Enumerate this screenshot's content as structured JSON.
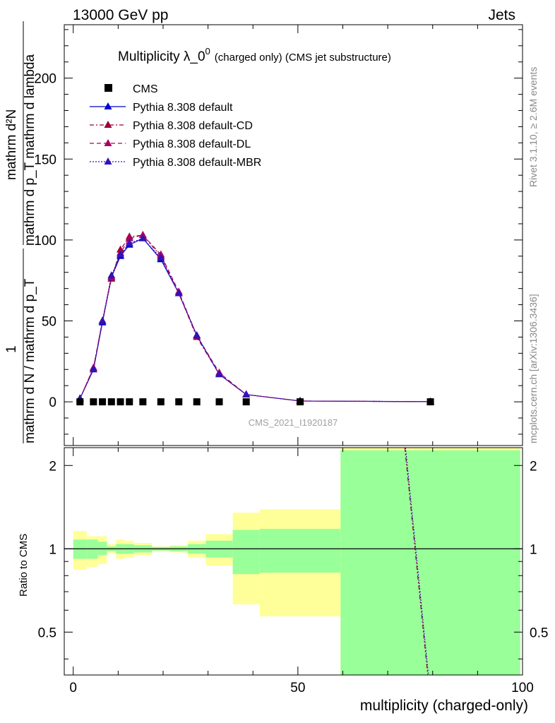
{
  "header": {
    "left": "13000 GeV pp",
    "right": "Jets"
  },
  "title": {
    "main": "Multiplicity λ_0",
    "sup": "0",
    "suffix": "(charged only) (CMS jet substructure)"
  },
  "watermark": "CMS_2021_I1920187",
  "side_labels": {
    "rivet": "Rivet 3.1.10, ≥ 2.6M events",
    "mcplots": "mcplots.cern.ch [arXiv:1306.3436]"
  },
  "ylabel_top": {
    "numerator": "mathrm d²N",
    "denominator": "mathrm d p_T mathrm d lambda",
    "prefix_num": "1",
    "prefix_den": "mathrm d N / mathrm d p_T"
  },
  "ylabel_ratio": "Ratio to CMS",
  "xlabel": "multiplicity (charged-only)",
  "legend": [
    {
      "label": "CMS",
      "color": "#000000",
      "style": "square"
    },
    {
      "label": "Pythia 8.308 default",
      "color": "#0000cc",
      "style": "solid"
    },
    {
      "label": "Pythia 8.308 default-CD",
      "color": "#990033",
      "style": "dashdot"
    },
    {
      "label": "Pythia 8.308 default-DL",
      "color": "#aa0066",
      "style": "dashed"
    },
    {
      "label": "Pythia 8.308 default-MBR",
      "color": "#3311bb",
      "style": "dotted"
    }
  ],
  "chart_data": {
    "type": "line",
    "xlim": [
      -2,
      100
    ],
    "ylim": [
      -27,
      233
    ],
    "ratio_ylim": [
      0.35,
      2.32
    ],
    "x_ticks": [
      0,
      50,
      100
    ],
    "y_ticks": [
      0,
      50,
      100,
      150,
      200
    ],
    "ratio_y_ticks": [
      0.5,
      1,
      2
    ],
    "cms": {
      "x": [
        1.5,
        4.5,
        6.5,
        8.5,
        10.5,
        12.5,
        15.5,
        19.5,
        23.5,
        27.5,
        32.5,
        38.5,
        50.5,
        79.5
      ],
      "y": [
        0,
        0,
        0,
        0,
        0,
        0,
        0,
        0,
        0,
        0,
        0,
        0,
        0,
        0
      ]
    },
    "series": [
      {
        "name": "Pythia 8.308 default",
        "x": [
          1.5,
          4.5,
          6.5,
          8.5,
          10.5,
          12.5,
          15.5,
          19.5,
          23.5,
          27.5,
          32.5,
          38.5,
          50.5,
          79.5
        ],
        "y": [
          2,
          20,
          49,
          77,
          90,
          97,
          101,
          88,
          67,
          41,
          17,
          4.5,
          0.5,
          0.1
        ]
      },
      {
        "name": "Pythia 8.308 default-CD",
        "x": [
          1.5,
          4.5,
          6.5,
          8.5,
          10.5,
          12.5,
          15.5,
          19.5,
          23.5,
          27.5,
          32.5,
          38.5,
          50.5,
          79.5
        ],
        "y": [
          2,
          21,
          50,
          76,
          94,
          102,
          103,
          90,
          67,
          40,
          17,
          4.5,
          0.5,
          0.1
        ]
      },
      {
        "name": "Pythia 8.308 default-DL",
        "x": [
          1.5,
          4.5,
          6.5,
          8.5,
          10.5,
          12.5,
          15.5,
          19.5,
          23.5,
          27.5,
          32.5,
          38.5,
          50.5,
          79.5
        ],
        "y": [
          2,
          21,
          50,
          77,
          92,
          101,
          103,
          91,
          68,
          41,
          18,
          4.5,
          0.5,
          0.1
        ]
      },
      {
        "name": "Pythia 8.308 default-MBR",
        "x": [
          1.5,
          4.5,
          6.5,
          8.5,
          10.5,
          12.5,
          15.5,
          19.5,
          23.5,
          27.5,
          32.5,
          38.5,
          50.5,
          79.5
        ],
        "y": [
          2,
          20,
          50,
          78,
          91,
          98,
          101,
          89,
          67,
          41,
          17,
          4.5,
          0.5,
          0.1
        ]
      }
    ],
    "ratio_bands": [
      {
        "x0": 0,
        "x1": 3,
        "g_lo": 0.92,
        "g_hi": 1.08,
        "y_lo": 0.84,
        "y_hi": 1.16
      },
      {
        "x0": 3,
        "x1": 5.5,
        "g_lo": 0.92,
        "g_hi": 1.08,
        "y_lo": 0.86,
        "y_hi": 1.11
      },
      {
        "x0": 5.5,
        "x1": 7.5,
        "g_lo": 0.95,
        "g_hi": 1.06,
        "y_lo": 0.88,
        "y_hi": 1.11
      },
      {
        "x0": 7.5,
        "x1": 9.5,
        "g_lo": 0.98,
        "g_hi": 1.02,
        "y_lo": 0.96,
        "y_hi": 1.04
      },
      {
        "x0": 9.5,
        "x1": 11.5,
        "g_lo": 0.96,
        "g_hi": 1.04,
        "y_lo": 0.92,
        "y_hi": 1.08
      },
      {
        "x0": 11.5,
        "x1": 13.5,
        "g_lo": 0.96,
        "g_hi": 1.04,
        "y_lo": 0.93,
        "y_hi": 1.07
      },
      {
        "x0": 13.5,
        "x1": 17.5,
        "g_lo": 0.97,
        "g_hi": 1.03,
        "y_lo": 0.95,
        "y_hi": 1.05
      },
      {
        "x0": 17.5,
        "x1": 21.5,
        "g_lo": 0.985,
        "g_hi": 1.015,
        "y_lo": 0.98,
        "y_hi": 1.02
      },
      {
        "x0": 21.5,
        "x1": 25.5,
        "g_lo": 0.98,
        "g_hi": 1.02,
        "y_lo": 0.97,
        "y_hi": 1.03
      },
      {
        "x0": 25.5,
        "x1": 29.5,
        "g_lo": 0.96,
        "g_hi": 1.04,
        "y_lo": 0.93,
        "y_hi": 1.07
      },
      {
        "x0": 29.5,
        "x1": 35.5,
        "g_lo": 0.93,
        "g_hi": 1.07,
        "y_lo": 0.87,
        "y_hi": 1.13
      },
      {
        "x0": 35.5,
        "x1": 41.5,
        "g_lo": 0.81,
        "g_hi": 1.17,
        "y_lo": 0.63,
        "y_hi": 1.35
      },
      {
        "x0": 41.5,
        "x1": 59.5,
        "g_lo": 0.82,
        "g_hi": 1.18,
        "y_lo": 0.57,
        "y_hi": 1.39
      },
      {
        "x0": 59.5,
        "x1": 99.5,
        "g_lo": 0.35,
        "g_hi": 2.27,
        "y_lo": 0.35,
        "y_hi": 2.32
      }
    ],
    "ratio_line": {
      "x": [
        73.8,
        78.9
      ],
      "y": [
        2.32,
        0.35
      ]
    }
  }
}
